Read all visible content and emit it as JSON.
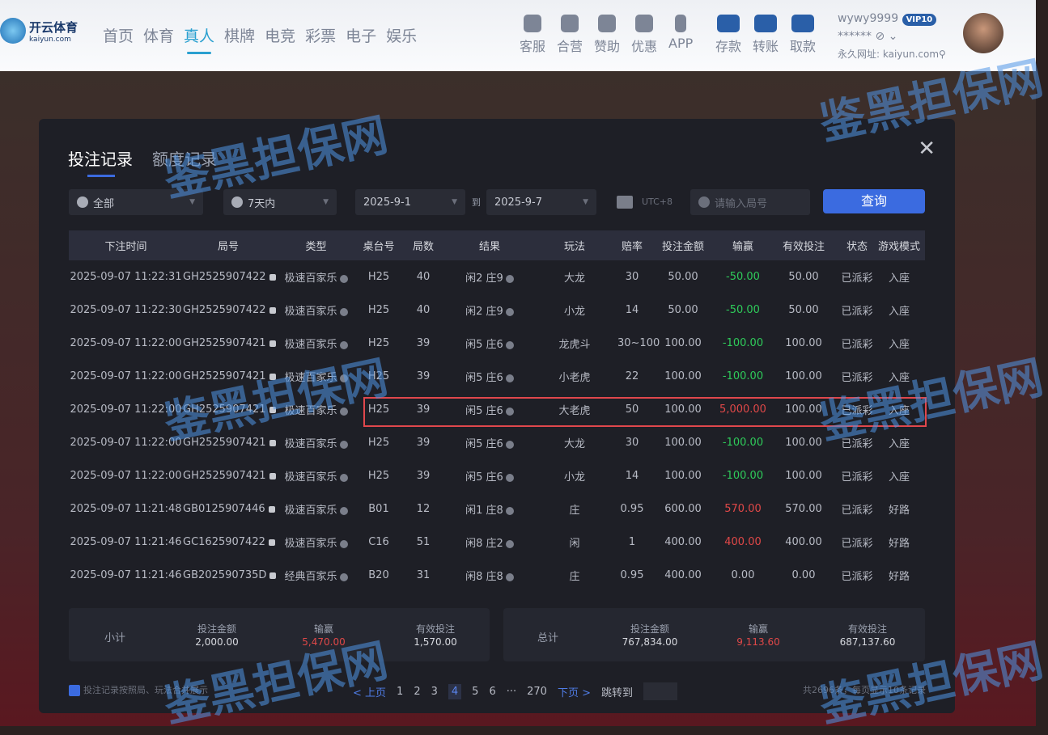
{
  "header": {
    "logo_cn": "开云体育",
    "logo_en": "kaiyun.com",
    "nav": [
      "首页",
      "体育",
      "真人",
      "棋牌",
      "电竞",
      "彩票",
      "电子",
      "娱乐"
    ],
    "active_nav": "真人",
    "tools": [
      "客服",
      "合营",
      "赞助",
      "优惠",
      "APP"
    ],
    "wallet": [
      "存款",
      "转账",
      "取款"
    ],
    "username": "wywy9999",
    "vip": "VIP10",
    "balance_masked": "******",
    "permanent_url": "永久网址: kaiyun.com"
  },
  "modal": {
    "tabs": [
      "投注记录",
      "额度记录"
    ],
    "active_tab": "投注记录",
    "filters": {
      "type": "全部",
      "range": "7天内",
      "date_from": "2025-9-1",
      "to_label": "到",
      "date_to": "2025-9-7",
      "timezone": "UTC+8",
      "round_placeholder": "请输入局号",
      "query": "查询"
    },
    "columns": [
      "下注时间",
      "局号",
      "类型",
      "桌台号",
      "局数",
      "结果",
      "玩法",
      "赔率",
      "投注金额",
      "输赢",
      "有效投注",
      "状态",
      "游戏模式"
    ],
    "rows": [
      [
        "2025-09-07 11:22:31",
        "GH2525907422",
        "极速百家乐",
        "H25",
        "40",
        "闲2 庄9",
        "大龙",
        "30",
        "50.00",
        "-50.00",
        "50.00",
        "已派彩",
        "入座"
      ],
      [
        "2025-09-07 11:22:30",
        "GH2525907422",
        "极速百家乐",
        "H25",
        "40",
        "闲2 庄9",
        "小龙",
        "14",
        "50.00",
        "-50.00",
        "50.00",
        "已派彩",
        "入座"
      ],
      [
        "2025-09-07 11:22:00",
        "GH2525907421",
        "极速百家乐",
        "H25",
        "39",
        "闲5 庄6",
        "龙虎斗",
        "30~100",
        "100.00",
        "-100.00",
        "100.00",
        "已派彩",
        "入座"
      ],
      [
        "2025-09-07 11:22:00",
        "GH2525907421",
        "极速百家乐",
        "H25",
        "39",
        "闲5 庄6",
        "小老虎",
        "22",
        "100.00",
        "-100.00",
        "100.00",
        "已派彩",
        "入座"
      ],
      [
        "2025-09-07 11:22:00",
        "GH2525907421",
        "极速百家乐",
        "H25",
        "39",
        "闲5 庄6",
        "大老虎",
        "50",
        "100.00",
        "5,000.00",
        "100.00",
        "已派彩",
        "入座"
      ],
      [
        "2025-09-07 11:22:00",
        "GH2525907421",
        "极速百家乐",
        "H25",
        "39",
        "闲5 庄6",
        "大龙",
        "30",
        "100.00",
        "-100.00",
        "100.00",
        "已派彩",
        "入座"
      ],
      [
        "2025-09-07 11:22:00",
        "GH2525907421",
        "极速百家乐",
        "H25",
        "39",
        "闲5 庄6",
        "小龙",
        "14",
        "100.00",
        "-100.00",
        "100.00",
        "已派彩",
        "入座"
      ],
      [
        "2025-09-07 11:21:48",
        "GB0125907446",
        "极速百家乐",
        "B01",
        "12",
        "闲1 庄8",
        "庄",
        "0.95",
        "600.00",
        "570.00",
        "570.00",
        "已派彩",
        "好路"
      ],
      [
        "2025-09-07 11:21:46",
        "GC1625907422",
        "极速百家乐",
        "C16",
        "51",
        "闲8 庄2",
        "闲",
        "1",
        "400.00",
        "400.00",
        "400.00",
        "已派彩",
        "好路"
      ],
      [
        "2025-09-07 11:21:46",
        "GB202590735D",
        "经典百家乐",
        "B20",
        "31",
        "闲8 庄8",
        "庄",
        "0.95",
        "400.00",
        "0.00",
        "0.00",
        "已派彩",
        "好路"
      ]
    ],
    "subtotal": {
      "label": "小计",
      "bet_label": "投注金额",
      "bet": "2,000.00",
      "win_label": "输赢",
      "win": "5,470.00",
      "valid_label": "有效投注",
      "valid": "1,570.00"
    },
    "total": {
      "label": "总计",
      "bet_label": "投注金额",
      "bet": "767,834.00",
      "win_label": "输赢",
      "win": "9,113.60",
      "valid_label": "有效投注",
      "valid": "687,137.60"
    },
    "merge_note": "投注记录按照局、玩法合并展示",
    "pagination": {
      "prev": "< 上页",
      "pages": [
        "1",
        "2",
        "3",
        "4",
        "5",
        "6"
      ],
      "current": "4",
      "ellipsis": "···",
      "last": "270",
      "next": "下页 >",
      "jump": "跳转到"
    },
    "count_note": "共2696条，每页显示10条记录"
  },
  "watermark": "鉴黑担保网",
  "colors": {
    "accent": "#3b6be0",
    "loss": "#2ecb5a",
    "win": "#e04848",
    "highlight": "#e0474c"
  }
}
